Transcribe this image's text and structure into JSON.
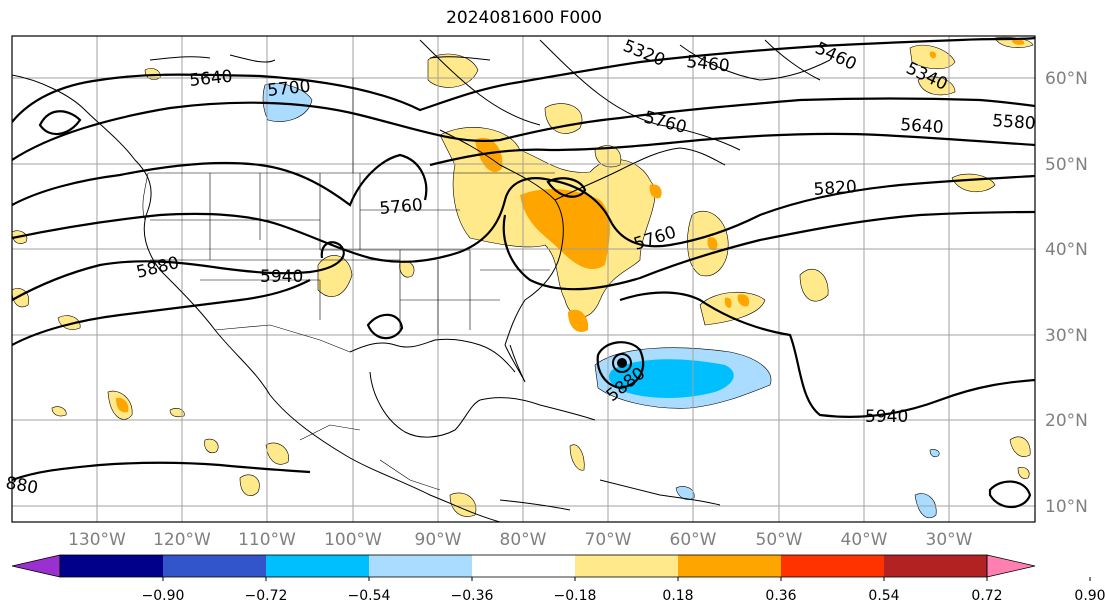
{
  "title": "2024081600 F000",
  "lat_labels": [
    "60°N",
    "50°N",
    "40°N",
    "30°N",
    "20°N",
    "10°N"
  ],
  "lon_labels": [
    "130°W",
    "120°W",
    "110°W",
    "100°W",
    "90°W",
    "80°W",
    "70°W",
    "60°W",
    "50°W",
    "40°W",
    "30°W"
  ],
  "contour_labels": [
    "5640",
    "5700",
    "5460",
    "5460",
    "5340",
    "5580",
    "5640",
    "5760",
    "5820",
    "5760",
    "5760",
    "5880",
    "5940",
    "5880",
    "5940",
    "880",
    "5320"
  ],
  "colorbar": {
    "ticks": [
      "−0.90",
      "−0.72",
      "−0.54",
      "−0.36",
      "−0.18",
      "0.18",
      "0.36",
      "0.54",
      "0.72",
      "0.90"
    ],
    "colors": [
      "#9b30d0",
      "#00008b",
      "#3355cc",
      "#00bfff",
      "#aadcff",
      "#ffffff",
      "#ffe98a",
      "#ffa500",
      "#ff3300",
      "#b22222",
      "#ff80b0"
    ]
  }
}
